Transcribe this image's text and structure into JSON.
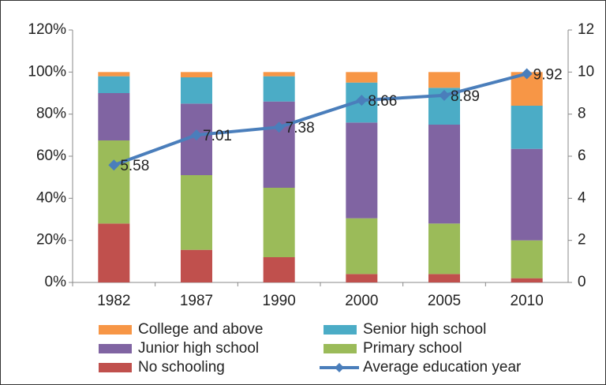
{
  "chart_data": {
    "type": "bar",
    "stacked": true,
    "categories": [
      "1982",
      "1987",
      "1990",
      "2000",
      "2005",
      "2010"
    ],
    "series": [
      {
        "name": "College and above",
        "color": "#f79646",
        "values": [
          2,
          2.5,
          2,
          5,
          7.5,
          16
        ]
      },
      {
        "name": "Senior high school",
        "color": "#4bacc6",
        "values": [
          8,
          12.5,
          12,
          19,
          17.5,
          20.5
        ]
      },
      {
        "name": "Junior high school",
        "color": "#8064a2",
        "values": [
          22.5,
          34,
          41,
          45.5,
          47,
          43.5
        ]
      },
      {
        "name": "Primary school",
        "color": "#9bbb59",
        "values": [
          39.5,
          35.5,
          33,
          26.5,
          24,
          18
        ]
      },
      {
        "name": "No schooling",
        "color": "#c0504d",
        "values": [
          28,
          15.5,
          12,
          4,
          4,
          2
        ]
      },
      {
        "name": "Average education year",
        "color": "#4a7ebb",
        "type": "line",
        "axis": "y2",
        "values": [
          5.58,
          7.01,
          7.38,
          8.66,
          8.89,
          9.92
        ]
      }
    ],
    "ylim": [
      0,
      120
    ],
    "yticks": [
      {
        "value": 0,
        "label": "0%"
      },
      {
        "value": 20,
        "label": "20%"
      },
      {
        "value": 40,
        "label": "40%"
      },
      {
        "value": 60,
        "label": "60%"
      },
      {
        "value": 80,
        "label": "80%"
      },
      {
        "value": 100,
        "label": "100%"
      },
      {
        "value": 120,
        "label": "120%"
      }
    ],
    "y2lim": [
      0,
      12
    ],
    "y2ticks": [
      0,
      2,
      4,
      6,
      8,
      10,
      12
    ],
    "legend": "bottom"
  }
}
